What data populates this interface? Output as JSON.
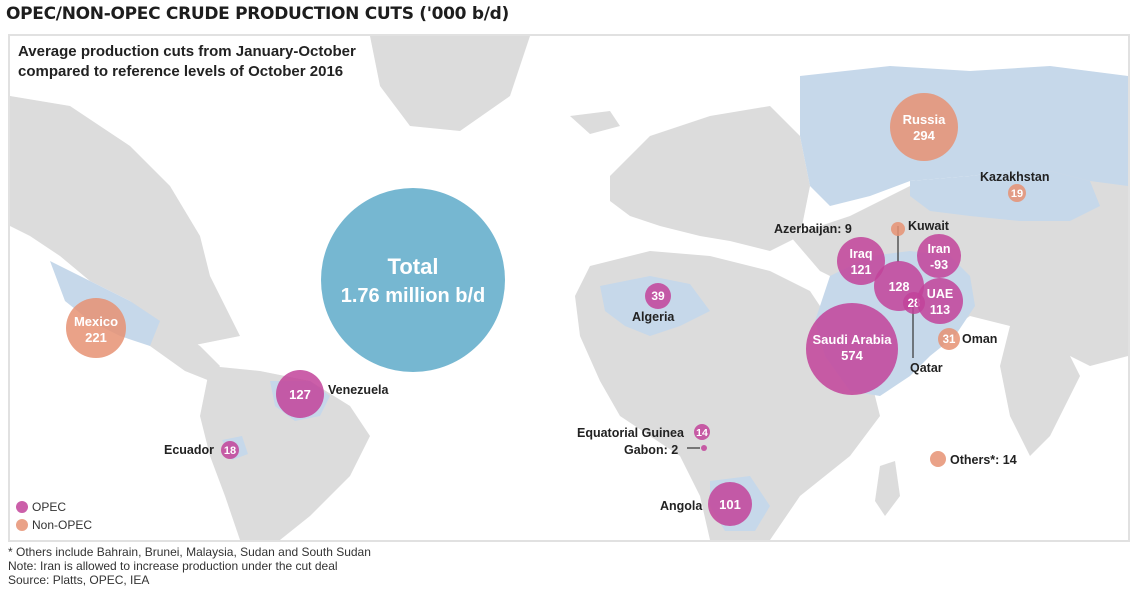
{
  "title": "OPEC/NON-OPEC CRUDE PRODUCTION CUTS ('000 b/d)",
  "subtitle": {
    "line1": "Average production cuts from January-October",
    "line2": "compared to reference levels of October 2016"
  },
  "total": {
    "label": "Total",
    "value": "1.76 million b/d"
  },
  "colors": {
    "opec": "#c2439a",
    "non_opec": "#e69273",
    "total": "#6fb3cf",
    "land": "#dcdcdc",
    "highlight_land": "#c6d8ea",
    "ocean": "#ffffff"
  },
  "legend": {
    "opec": "OPEC",
    "non_opec": "Non-OPEC"
  },
  "countries": [
    {
      "name": "Russia",
      "value": "294",
      "group": "non_opec"
    },
    {
      "name": "Kazakhstan",
      "value": "19",
      "group": "non_opec"
    },
    {
      "name": "Azerbaijan: 9",
      "value": "",
      "group": "non_opec"
    },
    {
      "name": "Kuwait",
      "value": "",
      "group": "opec"
    },
    {
      "name": "Iraq",
      "value": "121",
      "group": "opec"
    },
    {
      "name": "Iran",
      "value": "-93",
      "group": "opec"
    },
    {
      "name": "",
      "value": "128",
      "group": "opec"
    },
    {
      "name": "",
      "value": "28",
      "group": "opec"
    },
    {
      "name": "UAE",
      "value": "113",
      "group": "opec"
    },
    {
      "name": "Oman",
      "value": "31",
      "group": "non_opec"
    },
    {
      "name": "Qatar",
      "value": "",
      "group": "opec"
    },
    {
      "name": "Saudi Arabia",
      "value": "574",
      "group": "opec"
    },
    {
      "name": "Algeria",
      "value": "39",
      "group": "opec"
    },
    {
      "name": "Mexico",
      "value": "221",
      "group": "non_opec"
    },
    {
      "name": "Venezuela",
      "value": "127",
      "group": "opec"
    },
    {
      "name": "Ecuador",
      "value": "18",
      "group": "opec"
    },
    {
      "name": "Equatorial Guinea",
      "value": "14",
      "group": "opec"
    },
    {
      "name": "Gabon: 2",
      "value": "",
      "group": "opec"
    },
    {
      "name": "Angola",
      "value": "101",
      "group": "opec"
    },
    {
      "name": "Others*: 14",
      "value": "",
      "group": "non_opec"
    }
  ],
  "footnotes": {
    "line1": "* Others include Bahrain, Brunei, Malaysia, Sudan and South Sudan",
    "line2": "Note: Iran is allowed to increase production under the cut deal",
    "line3": "Source: Platts, OPEC, IEA"
  }
}
